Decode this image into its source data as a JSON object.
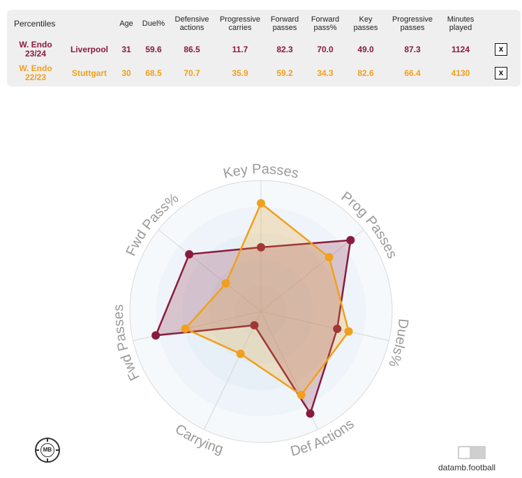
{
  "table": {
    "header_label": "Percentiles",
    "columns": [
      "Age",
      "Duel%",
      "Defensive\nactions",
      "Progressive\ncarries",
      "Forward\npasses",
      "Forward\npass%",
      "Key\npasses",
      "Progressive\npasses",
      "Minutes\nplayed"
    ],
    "rows": [
      {
        "player_line1": "W. Endo",
        "player_line2": "23/24",
        "team": "Liverpool",
        "values": [
          "31",
          "59.6",
          "86.5",
          "11.7",
          "82.3",
          "70.0",
          "49.0",
          "87.3",
          "1124"
        ],
        "remove_label": "x",
        "color": "#8b1a3d"
      },
      {
        "player_line1": "W. Endo",
        "player_line2": "22/23",
        "team": "Stuttgart",
        "values": [
          "30",
          "68.5",
          "70.7",
          "35.9",
          "59.2",
          "34.3",
          "82.6",
          "66.4",
          "4130"
        ],
        "remove_label": "x",
        "color": "#f0a01c"
      }
    ]
  },
  "chart_data": {
    "type": "radar",
    "axes": [
      "Key Passes",
      "Prog Passes",
      "Duels%",
      "Def Actions",
      "Carrying",
      "Fwd Passes",
      "Fwd Pass%"
    ],
    "range": [
      0,
      100
    ],
    "series": [
      {
        "name": "W. Endo 23/24",
        "color": "#8b1a3d",
        "values": [
          49.0,
          87.3,
          59.6,
          86.5,
          11.7,
          82.3,
          70.0
        ]
      },
      {
        "name": "W. Endo 22/23",
        "color": "#f0a01c",
        "values": [
          82.6,
          66.4,
          68.5,
          70.7,
          35.9,
          59.2,
          34.3
        ]
      }
    ]
  },
  "footer": {
    "logo_text": "MB",
    "credit": "datamb.football"
  }
}
